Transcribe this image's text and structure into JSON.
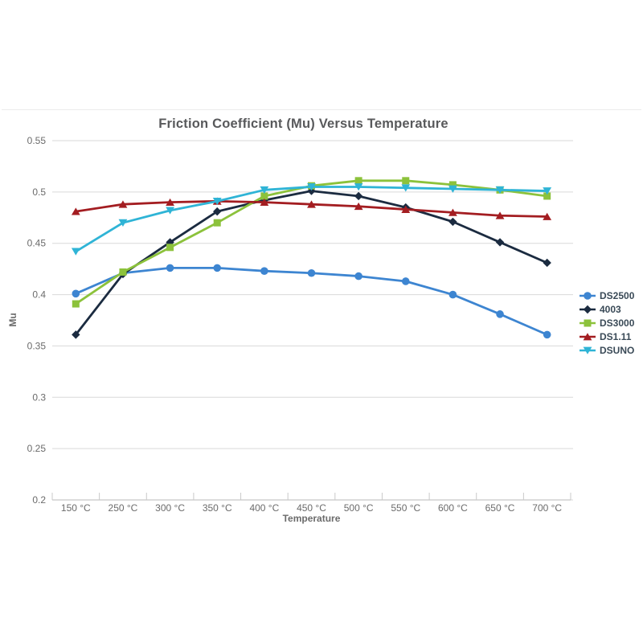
{
  "chart_data": {
    "type": "line",
    "title": "Friction Coefficient (Mu) Versus Temperature",
    "xlabel": "Temperature",
    "ylabel": "Mu",
    "categories": [
      "150 °C",
      "250 °C",
      "300 °C",
      "350 °C",
      "400 °C",
      "450 °C",
      "500 °C",
      "550 °C",
      "600 °C",
      "650 °C",
      "700 °C"
    ],
    "y_ticks": [
      0.55,
      0.5,
      0.45,
      0.4,
      0.35,
      0.3,
      0.25,
      0.2
    ],
    "ylim": [
      0.2,
      0.55
    ],
    "grid": "horizontal",
    "legend_position": "right",
    "series": [
      {
        "name": "DS2500",
        "marker": "circle",
        "color": "#3d85d1",
        "values": [
          0.401,
          0.421,
          0.426,
          0.426,
          0.423,
          0.421,
          0.418,
          0.413,
          0.4,
          0.381,
          0.361
        ]
      },
      {
        "name": "4003",
        "marker": "diamond",
        "color": "#1b2b40",
        "values": [
          0.361,
          0.42,
          0.451,
          0.481,
          0.492,
          0.501,
          0.496,
          0.485,
          0.471,
          0.451,
          0.431
        ]
      },
      {
        "name": "DS3000",
        "marker": "square",
        "color": "#8cc23b",
        "values": [
          0.391,
          0.422,
          0.446,
          0.47,
          0.496,
          0.506,
          0.511,
          0.511,
          0.507,
          0.502,
          0.496
        ]
      },
      {
        "name": "DS1.11",
        "marker": "triangle-up",
        "color": "#a31d21",
        "values": [
          0.481,
          0.488,
          0.49,
          0.491,
          0.49,
          0.488,
          0.486,
          0.483,
          0.48,
          0.477,
          0.476
        ]
      },
      {
        "name": "DSUNO",
        "marker": "triangle-down",
        "color": "#2fb4d6",
        "values": [
          0.442,
          0.47,
          0.482,
          0.491,
          0.502,
          0.505,
          0.505,
          0.504,
          0.503,
          0.502,
          0.501
        ]
      }
    ],
    "styles": {
      "grid_color": "#d9d9d9",
      "axis_color": "#b8b8b8",
      "tick_color": "#c9c9c9",
      "tick_label_color": "#6b6b6b",
      "title_color": "#58595b",
      "axis_title_color": "#6b6b6b",
      "legend_text_color": "#3a4a57",
      "panel_border_color": "#ececec"
    }
  }
}
